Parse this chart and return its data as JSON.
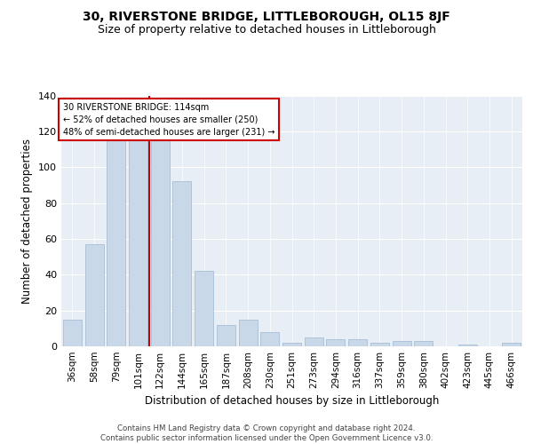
{
  "title": "30, RIVERSTONE BRIDGE, LITTLEBOROUGH, OL15 8JF",
  "subtitle": "Size of property relative to detached houses in Littleborough",
  "xlabel": "Distribution of detached houses by size in Littleborough",
  "ylabel": "Number of detached properties",
  "categories": [
    "36sqm",
    "58sqm",
    "79sqm",
    "101sqm",
    "122sqm",
    "144sqm",
    "165sqm",
    "187sqm",
    "208sqm",
    "230sqm",
    "251sqm",
    "273sqm",
    "294sqm",
    "316sqm",
    "337sqm",
    "359sqm",
    "380sqm",
    "402sqm",
    "423sqm",
    "445sqm",
    "466sqm"
  ],
  "values": [
    15,
    57,
    115,
    118,
    118,
    92,
    42,
    12,
    15,
    8,
    2,
    5,
    4,
    4,
    2,
    3,
    3,
    0,
    1,
    0,
    2
  ],
  "bar_color": "#c8d8e8",
  "bar_edge_color": "#a0b8d0",
  "red_line_index": 4,
  "annotation_text": "30 RIVERSTONE BRIDGE: 114sqm\n← 52% of detached houses are smaller (250)\n48% of semi-detached houses are larger (231) →",
  "annotation_box_color": "#ffffff",
  "annotation_border_color": "#cc0000",
  "ylim": [
    0,
    140
  ],
  "background_color": "#e8eef5",
  "footer_text": "Contains HM Land Registry data © Crown copyright and database right 2024.\nContains public sector information licensed under the Open Government Licence v3.0.",
  "title_fontsize": 10,
  "subtitle_fontsize": 9,
  "xlabel_fontsize": 8.5,
  "ylabel_fontsize": 8.5,
  "tick_fontsize": 7.5
}
